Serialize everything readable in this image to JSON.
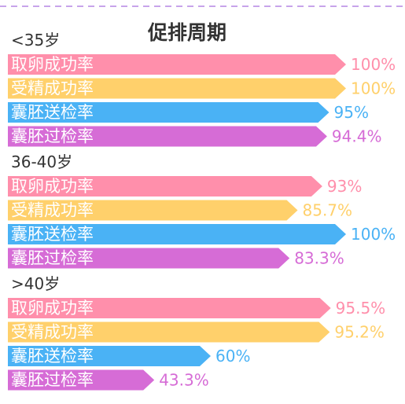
{
  "chart_data": {
    "type": "bar",
    "title": "促排周期",
    "xlim": [
      0,
      100
    ],
    "value_suffix": "%",
    "groups": [
      {
        "label": "<35岁",
        "bars": [
          {
            "category": "取卵成功率",
            "value": 100,
            "value_label": "100%",
            "color": "#ff8fab"
          },
          {
            "category": "受精成功率",
            "value": 100,
            "value_label": "100%",
            "color": "#ffd06b"
          },
          {
            "category": "囊胚送检率",
            "value": 95,
            "value_label": "95%",
            "color": "#4ab2f5"
          },
          {
            "category": "囊胚过检率",
            "value": 94.4,
            "value_label": "94.4%",
            "color": "#d66cd6"
          }
        ]
      },
      {
        "label": "36-40岁",
        "bars": [
          {
            "category": "取卵成功率",
            "value": 93,
            "value_label": "93%",
            "color": "#ff8fab"
          },
          {
            "category": "受精成功率",
            "value": 85.7,
            "value_label": "85.7%",
            "color": "#ffd06b"
          },
          {
            "category": "囊胚送检率",
            "value": 100,
            "value_label": "100%",
            "color": "#4ab2f5"
          },
          {
            "category": "囊胚过检率",
            "value": 83.3,
            "value_label": "83.3%",
            "color": "#d66cd6"
          }
        ]
      },
      {
        "label": ">40岁",
        "bars": [
          {
            "category": "取卵成功率",
            "value": 95.5,
            "value_label": "95.5%",
            "color": "#ff8fab"
          },
          {
            "category": "受精成功率",
            "value": 95.2,
            "value_label": "95.2%",
            "color": "#ffd06b"
          },
          {
            "category": "囊胚送检率",
            "value": 60,
            "value_label": "60%",
            "color": "#4ab2f5"
          },
          {
            "category": "囊胚过检率",
            "value": 43.3,
            "value_label": "43.3%",
            "color": "#d66cd6"
          }
        ]
      }
    ],
    "border_color": "#c7a4ea"
  }
}
